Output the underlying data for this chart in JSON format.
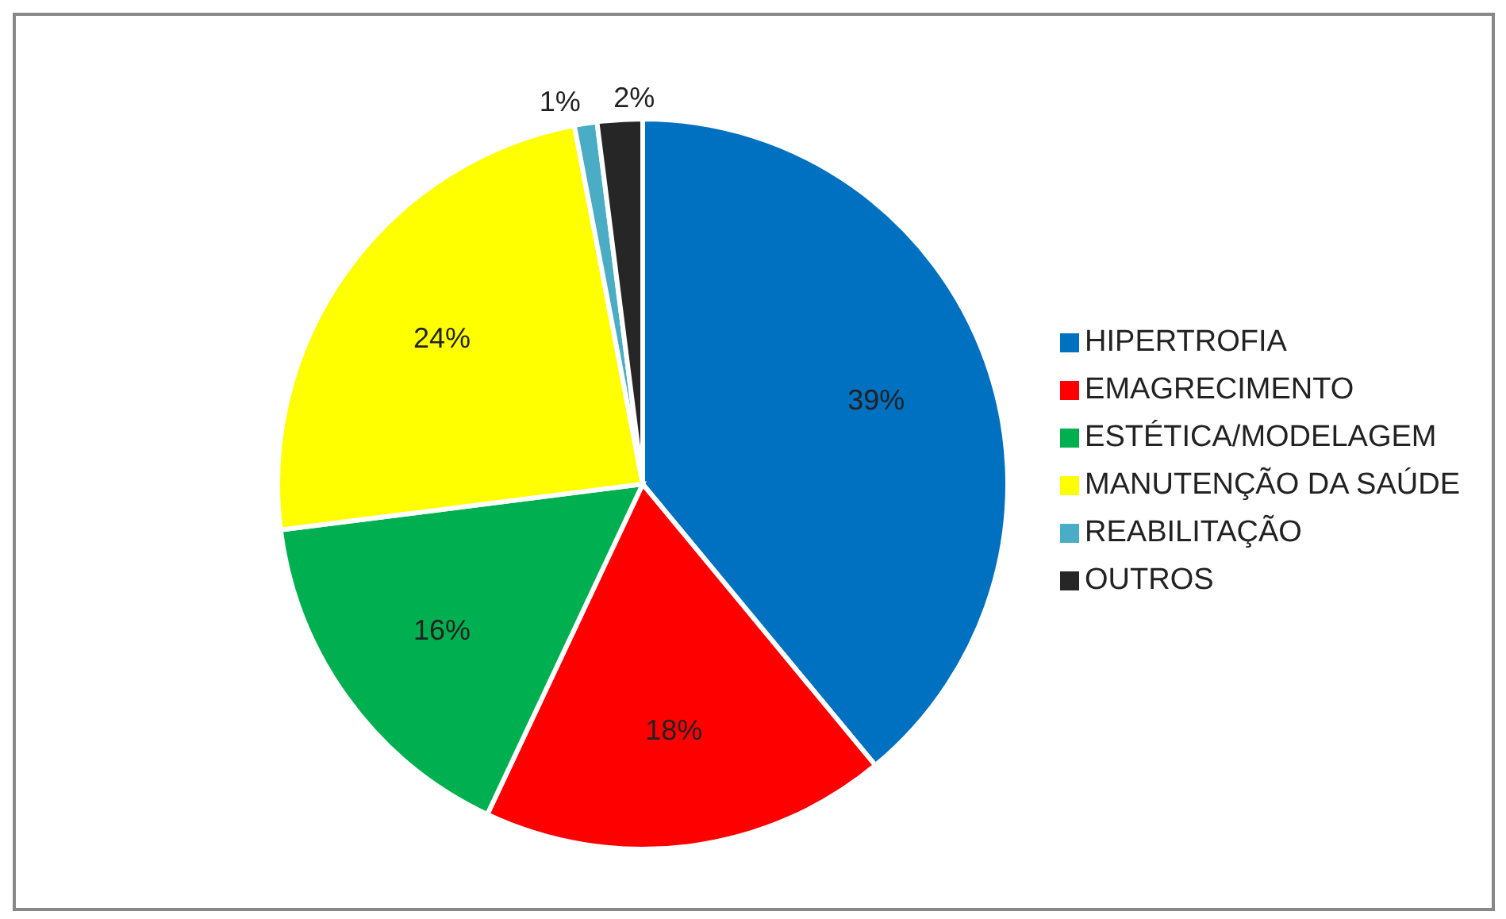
{
  "chart_data": {
    "type": "pie",
    "categories": [
      "HIPERTROFIA",
      "EMAGRECIMENTO",
      "ESTÉTICA/MODELAGEM",
      "MANUTENÇÃO DA SAÚDE",
      "REABILITAÇÃO",
      "OUTROS"
    ],
    "values": [
      39,
      18,
      16,
      24,
      1,
      2
    ],
    "colors": [
      "#0070c0",
      "#ff0000",
      "#00b050",
      "#ffff00",
      "#4bacc6",
      "#262626"
    ],
    "value_labels": [
      "39%",
      "18%",
      "16%",
      "24%",
      "1%",
      "2%"
    ],
    "legend": "right"
  }
}
